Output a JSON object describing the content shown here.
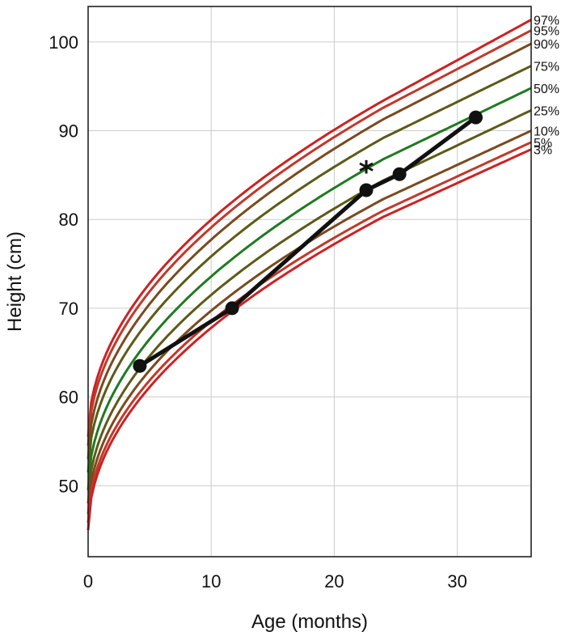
{
  "chart_data": {
    "type": "line",
    "xlabel": "Age (months)",
    "ylabel": "Height (cm)",
    "xlim": [
      0,
      36
    ],
    "ylim": [
      42,
      104
    ],
    "x_ticks": [
      0,
      10,
      20,
      30
    ],
    "y_ticks": [
      50,
      60,
      70,
      80,
      90,
      100
    ],
    "grid": true,
    "percentile_curves": [
      {
        "name": "97%",
        "color": "#cc2222",
        "at_0": 55.5,
        "at_24": 93.4,
        "at_36": 102.5
      },
      {
        "name": "95%",
        "color": "#c0392b",
        "at_0": 54.5,
        "at_24": 92.6,
        "at_36": 101.3
      },
      {
        "name": "90%",
        "color": "#7a4a1e",
        "at_0": 53.0,
        "at_24": 91.3,
        "at_36": 99.8
      },
      {
        "name": "75%",
        "color": "#5d5a18",
        "at_0": 51.5,
        "at_24": 89.2,
        "at_36": 97.3
      },
      {
        "name": "50%",
        "color": "#1f7a1f",
        "at_0": 49.5,
        "at_24": 86.8,
        "at_36": 94.8
      },
      {
        "name": "25%",
        "color": "#5d5a18",
        "at_0": 48.0,
        "at_24": 84.4,
        "at_36": 92.3
      },
      {
        "name": "10%",
        "color": "#7a4a1e",
        "at_0": 46.8,
        "at_24": 82.3,
        "at_36": 90.0
      },
      {
        "name": "5%",
        "color": "#c0392b",
        "at_0": 45.8,
        "at_24": 81.0,
        "at_36": 88.7
      },
      {
        "name": "3%",
        "color": "#cc2222",
        "at_0": 45.0,
        "at_24": 80.3,
        "at_36": 87.9
      }
    ],
    "series": [
      {
        "x": [
          4.2,
          11.7,
          22.6,
          25.3,
          31.5
        ],
        "y": [
          63.5,
          70.0,
          83.3,
          85.1,
          91.5
        ],
        "color": "#111111"
      }
    ],
    "annotations": [
      {
        "text": "*",
        "x": 22.6,
        "y": 85.9
      }
    ]
  }
}
